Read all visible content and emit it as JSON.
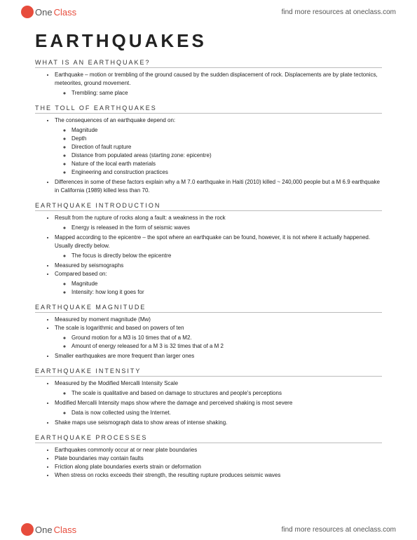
{
  "logo": {
    "part1": "One",
    "part2": "Class"
  },
  "header_link": "find more resources at oneclass.com",
  "footer_link": "find more resources at oneclass.com",
  "title": "EARTHQUAKES",
  "sections": [
    {
      "heading": "WHAT IS AN EARTHQUAKE?",
      "items": [
        {
          "text": "Earthquake – motion or trembling of the ground caused by the sudden displacement of rock. Displacements are by plate tectonics, meteorites, ground movement.",
          "children": [
            {
              "text": "Trembling: same place"
            }
          ]
        }
      ]
    },
    {
      "heading": "THE TOLL OF EARTHQUAKES",
      "items": [
        {
          "text": "The consequences of an earthquake depend on:",
          "children": [
            {
              "text": "Magnitude"
            },
            {
              "text": "Depth"
            },
            {
              "text": "Direction of fault rupture"
            },
            {
              "text": "Distance from populated areas (starting zone: epicentre)"
            },
            {
              "text": "Nature of the local earth materials"
            },
            {
              "text": "Engineering and construction practices"
            }
          ]
        },
        {
          "text": "Differences in some of these factors explain why a M 7.0 earthquake in Haiti (2010) killed ~ 240,000 people but a M 6.9 earthquake in California (1989) killed less than 70."
        }
      ]
    },
    {
      "heading": "EARTHQUAKE INTRODUCTION",
      "items": [
        {
          "text": "Result from the rupture of rocks along a fault: a weakness in the rock",
          "children": [
            {
              "text": "Energy is released in the form of seismic waves"
            }
          ]
        },
        {
          "text": "Mapped according to the epicentre – the spot where an earthquake can be found, however, it is not where it actually happened. Usually directly below.",
          "children": [
            {
              "text": "The focus is directly below the epicentre"
            }
          ]
        },
        {
          "text": "Measured by seismographs"
        },
        {
          "text": "Compared based on:",
          "children": [
            {
              "text": "Magnitude"
            },
            {
              "text": "Intensity: how long it goes for"
            }
          ]
        }
      ]
    },
    {
      "heading": "EARTHQUAKE MAGNITUDE",
      "items": [
        {
          "text": "Measured by moment magnitude (Mw)"
        },
        {
          "text": "The scale is logarithmic and based on powers of ten",
          "children": [
            {
              "text": "Ground motion for a M3 is 10 times that of a M2."
            },
            {
              "text": "Amount of energy released for a M 3 is 32 times that of a M 2"
            }
          ]
        },
        {
          "text": "Smaller earthquakes are more frequent than larger ones"
        }
      ]
    },
    {
      "heading": "EARTHQUAKE INTENSITY",
      "items": [
        {
          "text": "Measured by the Modified Mercalli Intensity Scale",
          "children": [
            {
              "text": "The scale is qualitative and based on damage to structures and people's perceptions"
            }
          ]
        },
        {
          "text": "Modified Mercalli Intensity maps show where the damage and perceived shaking is most severe",
          "children": [
            {
              "text": "Data is now collected using the Internet."
            }
          ]
        },
        {
          "text": "Shake maps use seismograph data to show areas of intense shaking."
        }
      ]
    },
    {
      "heading": "EARTHQUAKE PROCESSES",
      "items": [
        {
          "text": "Earthquakes commonly occur at or near plate boundaries"
        },
        {
          "text": "Plate boundaries may contain faults"
        },
        {
          "text": "Friction along plate boundaries exerts strain or deformation"
        },
        {
          "text": "When stress on rocks exceeds their strength, the resulting rupture produces seismic waves"
        }
      ]
    }
  ]
}
